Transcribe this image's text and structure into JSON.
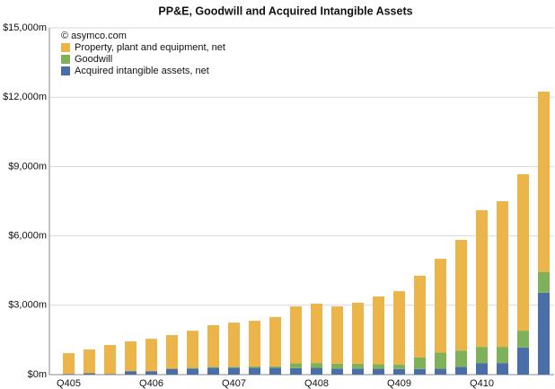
{
  "chart_data": {
    "type": "stacked_bar",
    "title": "PP&E, Goodwill and Acquired Intangible Assets",
    "annotation": "© asymco.com",
    "categories": [
      "Q405",
      null,
      null,
      null,
      "Q406",
      null,
      null,
      null,
      "Q407",
      null,
      null,
      null,
      "Q408",
      null,
      null,
      null,
      "Q409",
      null,
      null,
      null,
      "Q410",
      null,
      null,
      null
    ],
    "series": [
      {
        "name": "Property, plant and equipment, net",
        "color": "#ebb54a",
        "values": [
          900,
          1030,
          1250,
          1290,
          1400,
          1460,
          1600,
          1800,
          1910,
          1980,
          2140,
          2460,
          2570,
          2480,
          2640,
          2930,
          3170,
          3540,
          4060,
          4790,
          5910,
          6300,
          6770,
          7810
        ]
      },
      {
        "name": "Goodwill",
        "color": "#7fb05a",
        "values": [
          0,
          0,
          0,
          0,
          0,
          0,
          40,
          40,
          40,
          50,
          50,
          210,
          210,
          210,
          210,
          200,
          200,
          500,
          700,
          700,
          700,
          700,
          730,
          890
        ]
      },
      {
        "name": "Acquired intangible assets, net",
        "color": "#4a6fa8",
        "values": [
          30,
          60,
          30,
          150,
          150,
          250,
          260,
          300,
          300,
          300,
          300,
          280,
          290,
          260,
          260,
          250,
          240,
          240,
          250,
          340,
          500,
          500,
          1170,
          3540
        ]
      }
    ],
    "ylim": [
      0,
      15000
    ],
    "yticks": [
      {
        "value": 0,
        "label": "$0m"
      },
      {
        "value": 3000,
        "label": "$3,000m"
      },
      {
        "value": 6000,
        "label": "$6,000m"
      },
      {
        "value": 9000,
        "label": "$9,000m"
      },
      {
        "value": 12000,
        "label": "$12,000m"
      },
      {
        "value": 15000,
        "label": "$15,000m"
      }
    ],
    "grid": true,
    "legend": "top-left"
  }
}
